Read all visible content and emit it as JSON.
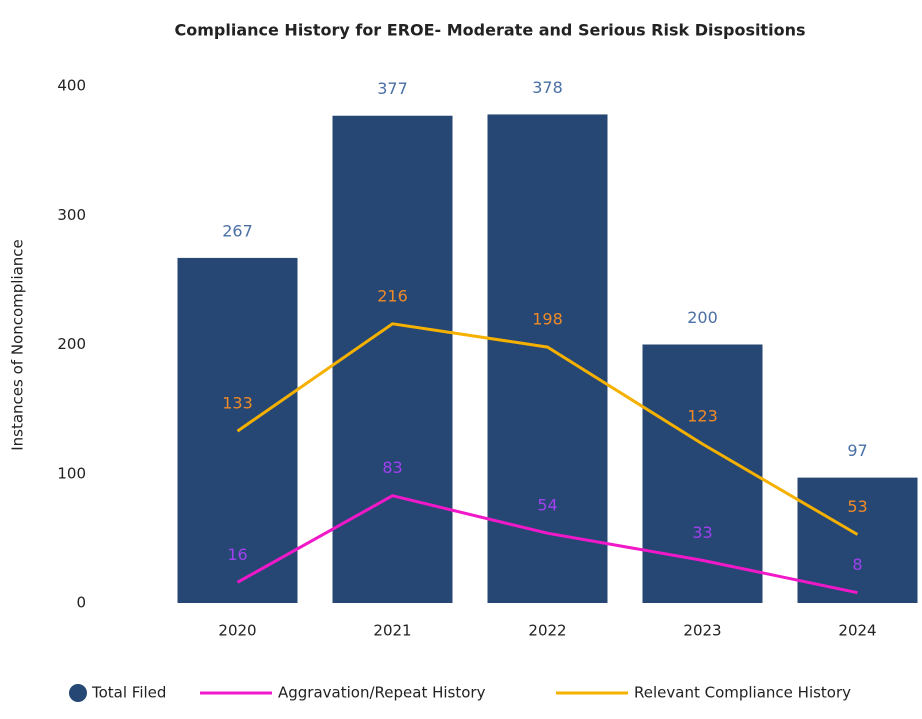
{
  "chart_data": {
    "type": "bar-line",
    "title": "Compliance History for EROE- Moderate and Serious Risk Dispositions",
    "y_axis_label": "Instances of Noncompliance",
    "categories": [
      "2020",
      "2021",
      "2022",
      "2023",
      "2024"
    ],
    "ylim": [
      0,
      400
    ],
    "yticks": [
      0,
      100,
      200,
      300,
      400
    ],
    "grid": false,
    "legend": "bottom",
    "series": [
      {
        "name": "Total Filed",
        "type": "bar",
        "color": "#264773",
        "label_color": "#4a6fa5",
        "values": [
          267,
          377,
          378,
          200,
          97
        ]
      },
      {
        "name": "Aggravation/Repeat History",
        "type": "line",
        "color": "#f018c8",
        "label_color": "#a040f0",
        "values": [
          16,
          83,
          54,
          33,
          8
        ]
      },
      {
        "name": "Relevant Compliance History",
        "type": "line",
        "color": "#f5b000",
        "label_color": "#ee8a28",
        "values": [
          133,
          216,
          198,
          123,
          53
        ]
      }
    ]
  }
}
